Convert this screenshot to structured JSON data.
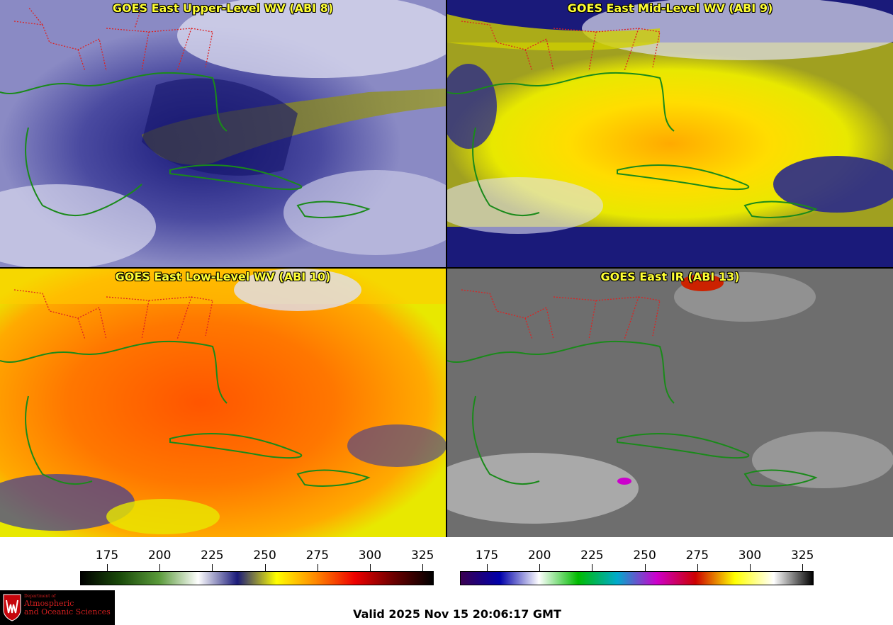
{
  "panels": [
    {
      "title": "GOES East Upper-Level WV (ABI 8)"
    },
    {
      "title": "GOES East Mid-Level WV (ABI 9)"
    },
    {
      "title": "GOES East Low-Level WV (ABI 10)"
    },
    {
      "title": "GOES East IR (ABI 13)"
    }
  ],
  "colorbar_wv": {
    "ticks": [
      "175",
      "200",
      "225",
      "250",
      "275",
      "300",
      "325"
    ],
    "colors": [
      "#000000",
      "#1a4a0a",
      "#5a9a3a",
      "#ffffff",
      "#1a1a7a",
      "#ffff00",
      "#ff8800",
      "#ee0000",
      "#6a0000",
      "#000000"
    ]
  },
  "colorbar_ir": {
    "ticks": [
      "175",
      "200",
      "225",
      "250",
      "275",
      "300",
      "325"
    ],
    "colors": [
      "#3a0050",
      "#0000aa",
      "#ffffff",
      "#00bb00",
      "#00aacc",
      "#cc00cc",
      "#cc0000",
      "#ffff00",
      "#ffffff",
      "#000000"
    ]
  },
  "valid_time": "Valid 2025 Nov 15 20:06:17 GMT",
  "logo": {
    "line1": "Department of",
    "line2": "Atmospheric",
    "line3": "and Oceanic Sciences"
  },
  "colors": {
    "title_yellow": "#ffff33",
    "coast_green": "#1a8a1a",
    "state_red": "#dd2222"
  }
}
